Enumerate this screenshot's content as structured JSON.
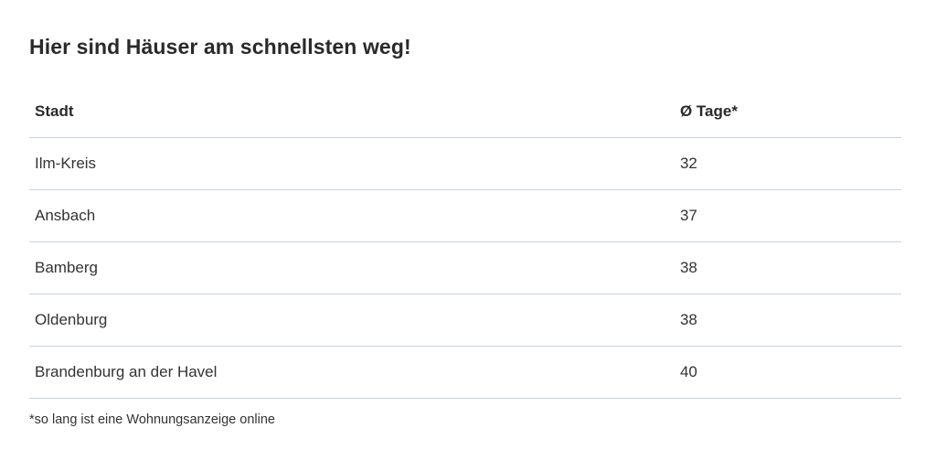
{
  "title": "Hier sind Häuser am schnellsten weg!",
  "chart_data": {
    "type": "table",
    "columns": [
      "Stadt",
      "Ø Tage*"
    ],
    "rows": [
      [
        "Ilm-Kreis",
        "32"
      ],
      [
        "Ansbach",
        "37"
      ],
      [
        "Bamberg",
        "38"
      ],
      [
        "Oldenburg",
        "38"
      ],
      [
        "Brandenburg an der Havel",
        "40"
      ]
    ]
  },
  "footnote": "*so lang ist eine Wohnungsanzeige online"
}
